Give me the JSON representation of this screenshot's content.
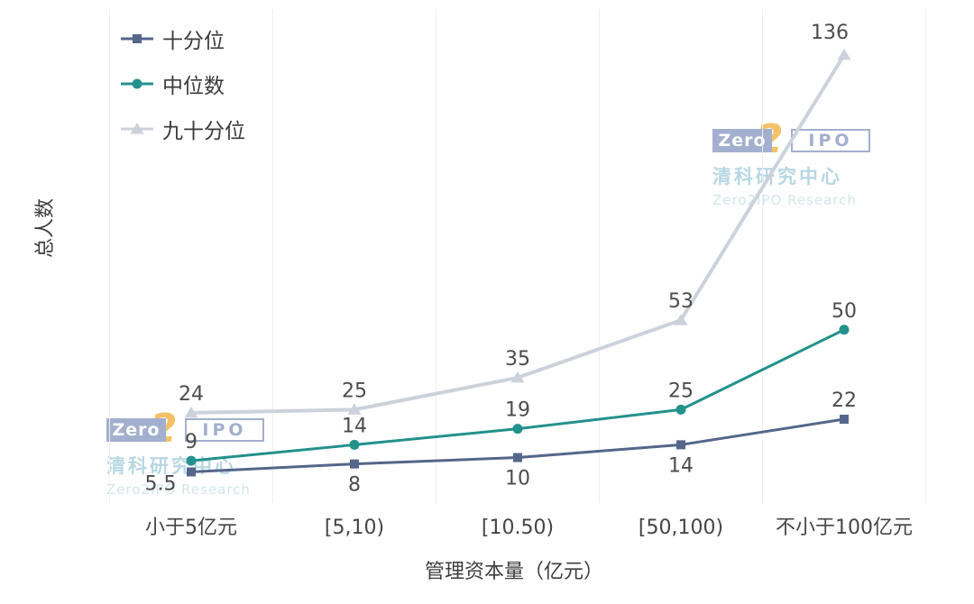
{
  "chart_data": {
    "type": "line",
    "title": "",
    "xlabel": "管理资本量（亿元）",
    "ylabel": "总人数",
    "categories": [
      "小于5亿元",
      "[5,10)",
      "[10.50)",
      "[50,100)",
      "不小于100亿元"
    ],
    "series": [
      {
        "name": "十分位",
        "marker": "square",
        "color": "#54668a",
        "values": [
          5.5,
          8,
          10,
          14,
          22
        ]
      },
      {
        "name": "中位数",
        "marker": "circle",
        "color": "#23918c",
        "values": [
          9,
          14,
          19,
          25,
          50
        ]
      },
      {
        "name": "九十分位",
        "marker": "triangle",
        "color": "#ccd2dc",
        "values": [
          24,
          25,
          35,
          53,
          136
        ]
      }
    ],
    "ylim": [
      0,
      150
    ],
    "grid": "faint-vertical",
    "legend_position": "top-left",
    "value_label_color": "#4c4c4c"
  },
  "watermark": {
    "zero": "Zero",
    "two": "2",
    "ipo": "IPO",
    "line1": "清科研究中心",
    "line2": "Zero2IPO Research",
    "logo_color": "#8c9cc3",
    "accent_color": "#f2b340",
    "cn_color": "#a6cedd",
    "en_color": "#c8dfe8"
  }
}
